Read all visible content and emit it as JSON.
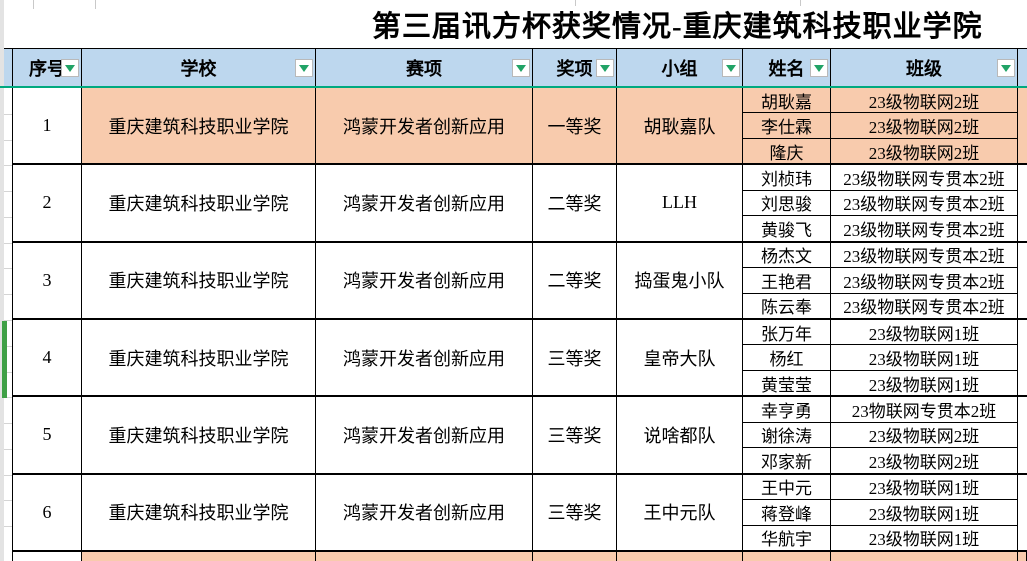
{
  "title": "第三届讯方杯获奖情况-重庆建筑科技职业学院",
  "columns": [
    {
      "key": "no",
      "label": "序号"
    },
    {
      "key": "school",
      "label": "学校"
    },
    {
      "key": "event",
      "label": "赛项"
    },
    {
      "key": "award",
      "label": "奖项"
    },
    {
      "key": "team",
      "label": "小组"
    },
    {
      "key": "name",
      "label": "姓名"
    },
    {
      "key": "class",
      "label": "班级"
    }
  ],
  "filter_icon_name": "filter-dropdown-icon",
  "rows": [
    {
      "no": "1",
      "school": "重庆建筑科技职业学院",
      "event": "鸿蒙开发者创新应用",
      "award": "一等奖",
      "team": "胡耿嘉队",
      "highlighted": true,
      "members": [
        {
          "name": "胡耿嘉",
          "class": "23级物联网2班"
        },
        {
          "name": "李仕霖",
          "class": "23级物联网2班"
        },
        {
          "name": "隆庆",
          "class": "23级物联网2班"
        }
      ]
    },
    {
      "no": "2",
      "school": "重庆建筑科技职业学院",
      "event": "鸿蒙开发者创新应用",
      "award": "二等奖",
      "team": "LLH",
      "highlighted": false,
      "members": [
        {
          "name": "刘桢玮",
          "class": "23级物联网专贯本2班"
        },
        {
          "name": "刘思骏",
          "class": "23级物联网专贯本2班"
        },
        {
          "name": "黄骏飞",
          "class": "23级物联网专贯本2班"
        }
      ]
    },
    {
      "no": "3",
      "school": "重庆建筑科技职业学院",
      "event": "鸿蒙开发者创新应用",
      "award": "二等奖",
      "team": "捣蛋鬼小队",
      "highlighted": false,
      "members": [
        {
          "name": "杨杰文",
          "class": "23级物联网专贯本2班"
        },
        {
          "name": "王艳君",
          "class": "23级物联网专贯本2班"
        },
        {
          "name": "陈云奉",
          "class": "23级物联网专贯本2班"
        }
      ]
    },
    {
      "no": "4",
      "school": "重庆建筑科技职业学院",
      "event": "鸿蒙开发者创新应用",
      "award": "三等奖",
      "team": "皇帝大队",
      "highlighted": false,
      "members": [
        {
          "name": "张万年",
          "class": "23级物联网1班"
        },
        {
          "name": "杨红",
          "class": "23级物联网1班"
        },
        {
          "name": "黄莹莹",
          "class": "23级物联网1班"
        }
      ]
    },
    {
      "no": "5",
      "school": "重庆建筑科技职业学院",
      "event": "鸿蒙开发者创新应用",
      "award": "三等奖",
      "team": "说啥都队",
      "highlighted": false,
      "members": [
        {
          "name": "幸亨勇",
          "class": "23物联网专贯本2班"
        },
        {
          "name": "谢徐涛",
          "class": "23级物联网2班"
        },
        {
          "name": "邓家新",
          "class": "23级物联网2班"
        }
      ]
    },
    {
      "no": "6",
      "school": "重庆建筑科技职业学院",
      "event": "鸿蒙开发者创新应用",
      "award": "三等奖",
      "team": "王中元队",
      "highlighted": false,
      "members": [
        {
          "name": "王中元",
          "class": "23级物联网1班"
        },
        {
          "name": "蒋登峰",
          "class": "23级物联网1班"
        },
        {
          "name": "华航宇",
          "class": "23级物联网1班"
        }
      ]
    }
  ],
  "partial_bottom_row": {
    "highlighted": true
  },
  "colors": {
    "header_bg": "#BDD7EE",
    "highlight_bg": "#F8CBAD",
    "filter_arrow_green": "#21A366",
    "frozen_line_green": "#00A97F",
    "selection_bar_green": "#3FA046",
    "grid_black": "#000000"
  }
}
